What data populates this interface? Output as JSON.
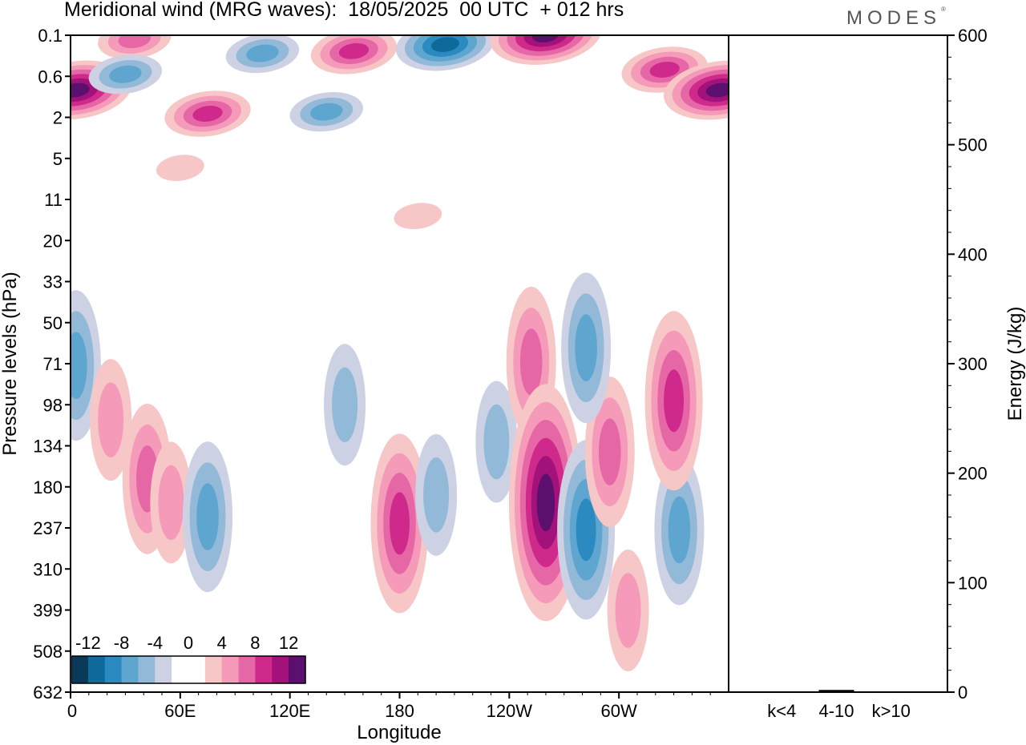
{
  "chart_data": [
    {
      "type": "heatmap",
      "title": "Meridional wind (MRG waves):  18/05/2025  00 UTC  + 012 hrs",
      "xlabel": "Longitude",
      "ylabel": "Pressure levels (hPa)",
      "x_ticks": [
        "0",
        "60E",
        "120E",
        "180",
        "120W",
        "60W"
      ],
      "y_ticks": [
        "0.1",
        "0.6",
        "2",
        "5",
        "11",
        "20",
        "33",
        "50",
        "71",
        "98",
        "134",
        "180",
        "237",
        "310",
        "399",
        "508",
        "632"
      ],
      "colorbar": {
        "labels": [
          "-12",
          "-8",
          "-4",
          "0",
          "4",
          "8",
          "12"
        ],
        "levels": [
          -14,
          -12,
          -10,
          -8,
          -6,
          -4,
          -2,
          0,
          2,
          4,
          6,
          8,
          10,
          12,
          14
        ],
        "colors": [
          "#0b3a58",
          "#0f6a9c",
          "#2b8bc0",
          "#5ea6cf",
          "#93b9d8",
          "#cdd1e4",
          "#ffffff",
          "#ffffff",
          "#f7c6c6",
          "#f59ab9",
          "#e667a6",
          "#cf2a8b",
          "#a3127a",
          "#5b0f6e"
        ]
      },
      "blobs": [
        {
          "lon": 3,
          "lev": 0.9,
          "v": 14
        },
        {
          "lon": 35,
          "lev": 0.12,
          "v": 8
        },
        {
          "lon": 30,
          "lev": 0.55,
          "v": -8
        },
        {
          "lon": 75,
          "lev": 1.8,
          "v": 10
        },
        {
          "lon": 105,
          "lev": 0.22,
          "v": -7
        },
        {
          "lon": 140,
          "lev": 1.7,
          "v": -7
        },
        {
          "lon": 155,
          "lev": 0.2,
          "v": 9
        },
        {
          "lon": 205,
          "lev": 0.15,
          "v": -11
        },
        {
          "lon": 260,
          "lev": 0.1,
          "v": 13
        },
        {
          "lon": 325,
          "lev": 0.45,
          "v": 10
        },
        {
          "lon": 355,
          "lev": 0.9,
          "v": 14
        },
        {
          "lon": 60,
          "lev": 6,
          "v": 3
        },
        {
          "lon": 190,
          "lev": 14,
          "v": 3
        },
        {
          "lon": 3,
          "lev": 72,
          "v": -7
        },
        {
          "lon": 22,
          "lev": 110,
          "v": 6
        },
        {
          "lon": 42,
          "lev": 170,
          "v": 8
        },
        {
          "lon": 55,
          "lev": 200,
          "v": 6
        },
        {
          "lon": 75,
          "lev": 220,
          "v": -7
        },
        {
          "lon": 150,
          "lev": 98,
          "v": -6
        },
        {
          "lon": 180,
          "lev": 230,
          "v": 10
        },
        {
          "lon": 200,
          "lev": 190,
          "v": -6
        },
        {
          "lon": 233,
          "lev": 130,
          "v": -6
        },
        {
          "lon": 252,
          "lev": 70,
          "v": 7
        },
        {
          "lon": 260,
          "lev": 200,
          "v": 13
        },
        {
          "lon": 282,
          "lev": 240,
          "v": -10
        },
        {
          "lon": 295,
          "lev": 140,
          "v": 7
        },
        {
          "lon": 282,
          "lev": 62,
          "v": -7
        },
        {
          "lon": 305,
          "lev": 400,
          "v": 5
        },
        {
          "lon": 333,
          "lev": 240,
          "v": -8
        },
        {
          "lon": 330,
          "lev": 95,
          "v": 9
        }
      ]
    },
    {
      "type": "bar",
      "ylabel": "Energy (J/kg)",
      "ylim": [
        0,
        600
      ],
      "y_ticks": [
        "0",
        "100",
        "200",
        "300",
        "400",
        "500",
        "600"
      ],
      "categories": [
        "k<4",
        "4-10",
        "k>10"
      ],
      "values": [
        0.5,
        2,
        0.5
      ]
    }
  ],
  "header": {
    "title": "Meridional wind (MRG waves):  18/05/2025  00 UTC  + 012 hrs",
    "logo": "MODES"
  }
}
